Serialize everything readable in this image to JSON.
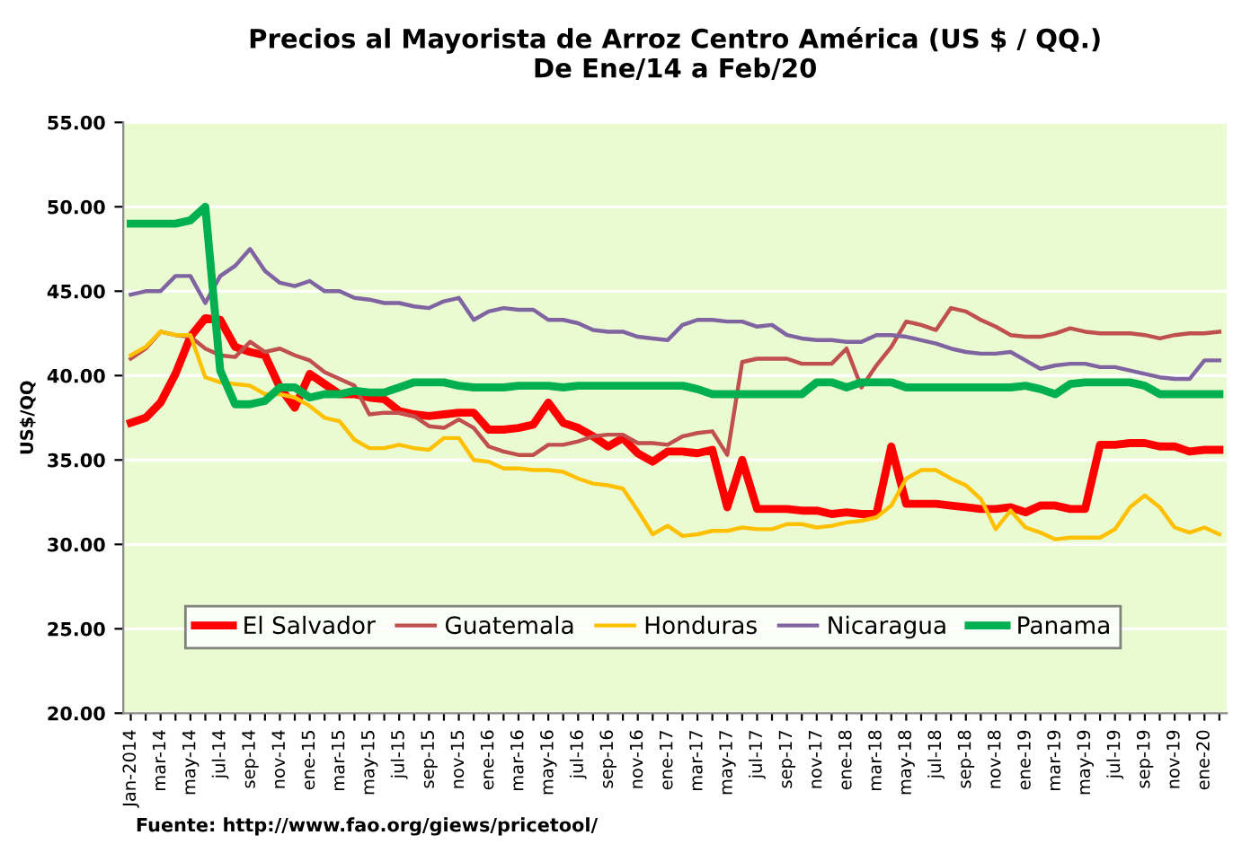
{
  "chart_data": {
    "type": "line",
    "title": "Precios al Mayorista de Arroz Centro América (US $ / QQ.)\nDe Ene/14 a Feb/20",
    "ylabel": "US$/QQ",
    "categories": [
      "Jan-2014",
      null,
      "mar-14",
      null,
      "may-14",
      null,
      "jul-14",
      null,
      "sep-14",
      null,
      "nov-14",
      null,
      "ene-15",
      null,
      "mar-15",
      null,
      "may-15",
      null,
      "jul-15",
      null,
      "sep-15",
      null,
      "nov-15",
      null,
      "ene-16",
      null,
      "mar-16",
      null,
      "may-16",
      null,
      "jul-16",
      null,
      "sep-16",
      null,
      "nov-16",
      null,
      "ene-17",
      null,
      "mar-17",
      null,
      "may-17",
      null,
      "jul-17",
      null,
      "sep-17",
      null,
      "nov-17",
      null,
      "ene-18",
      null,
      "mar-18",
      null,
      "may-18",
      null,
      "jul-18",
      null,
      "sep-18",
      null,
      "nov-18",
      null,
      "ene-19",
      null,
      "mar-19",
      null,
      "may-19",
      null,
      "jul-19",
      null,
      "sep-19",
      null,
      "nov-19",
      null,
      "ene-20",
      null
    ],
    "series": [
      {
        "name": "El Salvador",
        "color": "#ff0000",
        "values": [
          37.2,
          37.5,
          38.4,
          40.1,
          42.3,
          43.4,
          43.3,
          41.7,
          41.4,
          41.2,
          39.3,
          38.1,
          40.1,
          39.5,
          38.9,
          38.9,
          38.7,
          38.6,
          37.9,
          37.7,
          37.6,
          37.7,
          37.8,
          37.8,
          36.8,
          36.8,
          36.9,
          37.1,
          38.4,
          37.2,
          36.9,
          36.4,
          35.8,
          36.3,
          35.4,
          34.9,
          35.5,
          35.5,
          35.4,
          35.6,
          32.2,
          35.0,
          32.1,
          32.1,
          32.1,
          32.0,
          32.0,
          31.8,
          31.9,
          31.8,
          31.8,
          35.8,
          32.4,
          32.4,
          32.4,
          32.3,
          32.2,
          32.1,
          32.1,
          32.2,
          31.9,
          32.3,
          32.3,
          32.1,
          32.1,
          35.9,
          35.9,
          36.0,
          36.0,
          35.8,
          35.8,
          35.5,
          35.6,
          35.6
        ]
      },
      {
        "name": "Guatemala",
        "color": "#c0504d",
        "values": [
          41.0,
          41.6,
          42.6,
          42.4,
          42.3,
          41.6,
          41.2,
          41.1,
          42.0,
          41.4,
          41.6,
          41.2,
          40.9,
          40.2,
          39.8,
          39.4,
          37.7,
          37.8,
          37.8,
          37.6,
          37.0,
          36.9,
          37.4,
          36.9,
          35.8,
          35.5,
          35.3,
          35.3,
          35.9,
          35.9,
          36.1,
          36.4,
          36.5,
          36.5,
          36.0,
          36.0,
          35.9,
          36.4,
          36.6,
          36.7,
          35.3,
          40.8,
          41.0,
          41.0,
          41.0,
          40.7,
          40.7,
          40.7,
          41.6,
          39.3,
          40.6,
          41.7,
          43.2,
          43.0,
          42.7,
          44.0,
          43.8,
          43.3,
          42.9,
          42.4,
          42.3,
          42.3,
          42.5,
          42.8,
          42.6,
          42.5,
          42.5,
          42.5,
          42.4,
          42.2,
          42.4,
          42.5,
          42.5,
          42.6
        ]
      },
      {
        "name": "Honduras",
        "color": "#ffc000",
        "values": [
          41.2,
          41.7,
          42.6,
          42.4,
          42.4,
          39.9,
          39.6,
          39.5,
          39.4,
          38.9,
          38.9,
          38.7,
          38.2,
          37.5,
          37.3,
          36.2,
          35.7,
          35.7,
          35.9,
          35.7,
          35.6,
          36.3,
          36.3,
          35.0,
          34.9,
          34.5,
          34.5,
          34.4,
          34.4,
          34.3,
          33.9,
          33.6,
          33.5,
          33.3,
          32.0,
          30.6,
          31.1,
          30.5,
          30.6,
          30.8,
          30.8,
          31.0,
          30.9,
          30.9,
          31.2,
          31.2,
          31.0,
          31.1,
          31.3,
          31.4,
          31.6,
          32.3,
          33.9,
          34.4,
          34.4,
          33.9,
          33.5,
          32.7,
          30.9,
          32.0,
          31.0,
          30.7,
          30.3,
          30.4,
          30.4,
          30.4,
          30.9,
          32.2,
          32.9,
          32.2,
          31.0,
          30.7,
          31.0,
          30.6
        ]
      },
      {
        "name": "Nicaragua",
        "color": "#8064a2",
        "values": [
          44.8,
          45.0,
          45.0,
          45.9,
          45.9,
          44.3,
          45.9,
          46.5,
          47.5,
          46.2,
          45.5,
          45.3,
          45.6,
          45.0,
          45.0,
          44.6,
          44.5,
          44.3,
          44.3,
          44.1,
          44.0,
          44.4,
          44.6,
          43.3,
          43.8,
          44.0,
          43.9,
          43.9,
          43.3,
          43.3,
          43.1,
          42.7,
          42.6,
          42.6,
          42.3,
          42.2,
          42.1,
          43.0,
          43.3,
          43.3,
          43.2,
          43.2,
          42.9,
          43.0,
          42.4,
          42.2,
          42.1,
          42.1,
          42.0,
          42.0,
          42.4,
          42.4,
          42.3,
          42.1,
          41.9,
          41.6,
          41.4,
          41.3,
          41.3,
          41.4,
          40.9,
          40.4,
          40.6,
          40.7,
          40.7,
          40.5,
          40.5,
          40.3,
          40.1,
          39.9,
          39.8,
          39.8,
          40.9,
          40.9
        ]
      },
      {
        "name": "Panama",
        "color": "#00b050",
        "values": [
          49.0,
          49.0,
          49.0,
          49.0,
          49.2,
          50.0,
          40.3,
          38.3,
          38.3,
          38.5,
          39.3,
          39.3,
          38.7,
          38.9,
          38.9,
          39.1,
          39.0,
          39.0,
          39.3,
          39.6,
          39.6,
          39.6,
          39.4,
          39.3,
          39.3,
          39.3,
          39.4,
          39.4,
          39.4,
          39.3,
          39.4,
          39.4,
          39.4,
          39.4,
          39.4,
          39.4,
          39.4,
          39.4,
          39.2,
          38.9,
          38.9,
          38.9,
          38.9,
          38.9,
          38.9,
          38.9,
          39.6,
          39.6,
          39.3,
          39.6,
          39.6,
          39.6,
          39.3,
          39.3,
          39.3,
          39.3,
          39.3,
          39.3,
          39.3,
          39.3,
          39.4,
          39.2,
          38.9,
          39.5,
          39.6,
          39.6,
          39.6,
          39.6,
          39.4,
          38.9,
          38.9,
          38.9,
          38.9,
          38.9
        ]
      }
    ],
    "ylim": [
      20,
      55
    ],
    "yticks": [
      {
        "value": 20,
        "label": "20.00"
      },
      {
        "value": 25,
        "label": "25.00"
      },
      {
        "value": 30,
        "label": "30.00"
      },
      {
        "value": 35,
        "label": "35.00"
      },
      {
        "value": 40,
        "label": "40.00"
      },
      {
        "value": 45,
        "label": "45.00"
      },
      {
        "value": 50,
        "label": "50.00"
      },
      {
        "value": 55,
        "label": "55.00"
      }
    ],
    "grid": "y",
    "legend": "bottom",
    "marker": "none",
    "line_style": "solid",
    "annotations": [
      "Fuente: http://www.fao.org/giews/pricetool/"
    ]
  }
}
